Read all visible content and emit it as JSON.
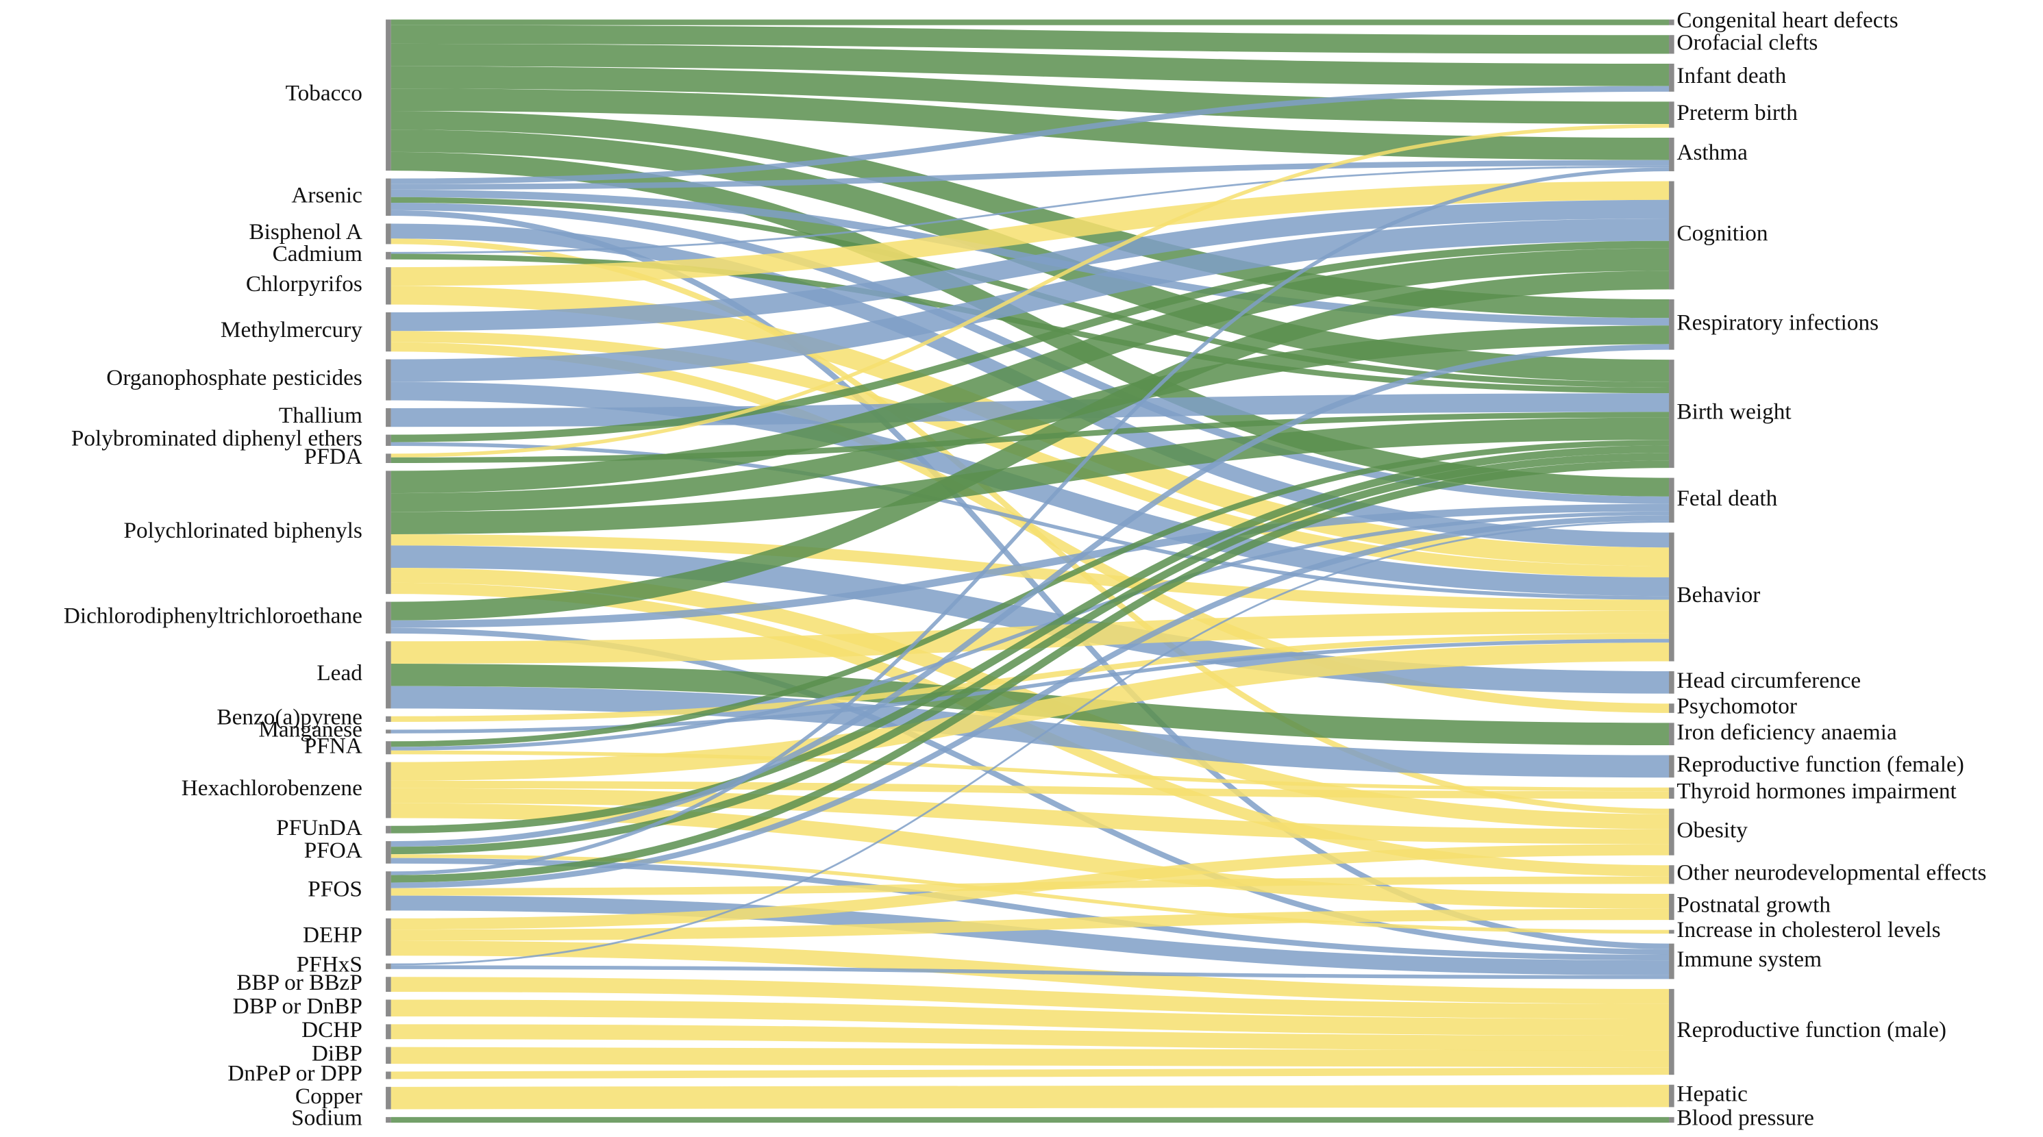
{
  "chart_data": {
    "type": "sankey",
    "sources": [
      "Tobacco",
      "Arsenic",
      "Bisphenol A",
      "Cadmium",
      "Chlorpyrifos",
      "Methylmercury",
      "Organophosphate pesticides",
      "Thallium",
      "Polybrominated diphenyl ethers",
      "PFDA",
      "Polychlorinated biphenyls",
      "Dichlorodiphenyltrichloroethane",
      "Lead",
      "Benzo(a)pyrene",
      "Manganese",
      "PFNA",
      "Hexachlorobenzene",
      "PFUnDA",
      "PFOA",
      "PFOS",
      "DEHP",
      "PFHxS",
      "BBP or BBzP",
      "DBP or DnBP",
      "DCHP",
      "DiBP",
      "DnPeP or DPP",
      "Copper",
      "Sodium"
    ],
    "targets": [
      "Congenital heart defects",
      "Orofacial clefts",
      "Infant death",
      "Preterm birth",
      "Asthma",
      "Cognition",
      "Respiratory infections",
      "Birth weight",
      "Fetal death",
      "Behavior",
      "Head circumference",
      "Psychomotor",
      "Iron deficiency anaemia",
      "Reproductive function (female)",
      "Thyroid hormones impairment",
      "Obesity",
      "Other neurodevelopmental effects",
      "Postnatal growth",
      "Increase in cholesterol levels",
      "Immune system",
      "Reproductive function (male)",
      "Hepatic",
      "Blood pressure"
    ],
    "links": [
      {
        "source": 0,
        "target": 0,
        "value": 3,
        "color": "#5b8f4f"
      },
      {
        "source": 0,
        "target": 1,
        "value": 10,
        "color": "#5b8f4f"
      },
      {
        "source": 0,
        "target": 2,
        "value": 12,
        "color": "#5b8f4f"
      },
      {
        "source": 0,
        "target": 3,
        "value": 12,
        "color": "#5b8f4f"
      },
      {
        "source": 0,
        "target": 4,
        "value": 12,
        "color": "#5b8f4f"
      },
      {
        "source": 0,
        "target": 6,
        "value": 10,
        "color": "#5b8f4f"
      },
      {
        "source": 0,
        "target": 7,
        "value": 12,
        "color": "#5b8f4f"
      },
      {
        "source": 0,
        "target": 8,
        "value": 10,
        "color": "#5b8f4f"
      },
      {
        "source": 1,
        "target": 2,
        "value": 3,
        "color": "#7f9fc7"
      },
      {
        "source": 1,
        "target": 4,
        "value": 3,
        "color": "#7f9fc7"
      },
      {
        "source": 1,
        "target": 6,
        "value": 4,
        "color": "#7f9fc7"
      },
      {
        "source": 1,
        "target": 7,
        "value": 3,
        "color": "#5b8f4f"
      },
      {
        "source": 1,
        "target": 8,
        "value": 4,
        "color": "#7f9fc7"
      },
      {
        "source": 1,
        "target": 19,
        "value": 3,
        "color": "#7f9fc7"
      },
      {
        "source": 2,
        "target": 9,
        "value": 8,
        "color": "#7f9fc7"
      },
      {
        "source": 2,
        "target": 15,
        "value": 3,
        "color": "#f6df6f"
      },
      {
        "source": 3,
        "target": 4,
        "value": 1,
        "color": "#7f9fc7"
      },
      {
        "source": 3,
        "target": 7,
        "value": 3,
        "color": "#5b8f4f"
      },
      {
        "source": 4,
        "target": 5,
        "value": 10,
        "color": "#f6df6f"
      },
      {
        "source": 4,
        "target": 9,
        "value": 10,
        "color": "#f6df6f"
      },
      {
        "source": 5,
        "target": 5,
        "value": 10,
        "color": "#7f9fc7"
      },
      {
        "source": 5,
        "target": 9,
        "value": 6,
        "color": "#f6df6f"
      },
      {
        "source": 5,
        "target": 11,
        "value": 5,
        "color": "#f6df6f"
      },
      {
        "source": 6,
        "target": 5,
        "value": 12,
        "color": "#7f9fc7"
      },
      {
        "source": 6,
        "target": 9,
        "value": 10,
        "color": "#7f9fc7"
      },
      {
        "source": 7,
        "target": 7,
        "value": 10,
        "color": "#7f9fc7"
      },
      {
        "source": 8,
        "target": 5,
        "value": 4,
        "color": "#5b8f4f"
      },
      {
        "source": 8,
        "target": 9,
        "value": 2,
        "color": "#7f9fc7"
      },
      {
        "source": 9,
        "target": 3,
        "value": 2,
        "color": "#f6df6f"
      },
      {
        "source": 9,
        "target": 7,
        "value": 3,
        "color": "#5b8f4f"
      },
      {
        "source": 10,
        "target": 5,
        "value": 12,
        "color": "#5b8f4f"
      },
      {
        "source": 10,
        "target": 6,
        "value": 10,
        "color": "#5b8f4f"
      },
      {
        "source": 10,
        "target": 7,
        "value": 12,
        "color": "#5b8f4f"
      },
      {
        "source": 10,
        "target": 9,
        "value": 6,
        "color": "#f6df6f"
      },
      {
        "source": 10,
        "target": 10,
        "value": 12,
        "color": "#7f9fc7"
      },
      {
        "source": 10,
        "target": 15,
        "value": 8,
        "color": "#f6df6f"
      },
      {
        "source": 10,
        "target": 16,
        "value": 6,
        "color": "#f6df6f"
      },
      {
        "source": 11,
        "target": 5,
        "value": 10,
        "color": "#5b8f4f"
      },
      {
        "source": 11,
        "target": 8,
        "value": 4,
        "color": "#7f9fc7"
      },
      {
        "source": 11,
        "target": 19,
        "value": 3,
        "color": "#7f9fc7"
      },
      {
        "source": 12,
        "target": 9,
        "value": 12,
        "color": "#f6df6f"
      },
      {
        "source": 12,
        "target": 12,
        "value": 12,
        "color": "#5b8f4f"
      },
      {
        "source": 12,
        "target": 13,
        "value": 12,
        "color": "#7f9fc7"
      },
      {
        "source": 13,
        "target": 9,
        "value": 3,
        "color": "#f6df6f"
      },
      {
        "source": 14,
        "target": 9,
        "value": 2,
        "color": "#7f9fc7"
      },
      {
        "source": 15,
        "target": 7,
        "value": 3,
        "color": "#5b8f4f"
      },
      {
        "source": 15,
        "target": 8,
        "value": 2,
        "color": "#7f9fc7"
      },
      {
        "source": 15,
        "target": 14,
        "value": 2,
        "color": "#f6df6f"
      },
      {
        "source": 16,
        "target": 9,
        "value": 10,
        "color": "#f6df6f"
      },
      {
        "source": 16,
        "target": 14,
        "value": 4,
        "color": "#f6df6f"
      },
      {
        "source": 16,
        "target": 15,
        "value": 8,
        "color": "#f6df6f"
      },
      {
        "source": 16,
        "target": 17,
        "value": 8,
        "color": "#f6df6f"
      },
      {
        "source": 17,
        "target": 7,
        "value": 4,
        "color": "#5b8f4f"
      },
      {
        "source": 18,
        "target": 6,
        "value": 3,
        "color": "#7f9fc7"
      },
      {
        "source": 18,
        "target": 7,
        "value": 4,
        "color": "#5b8f4f"
      },
      {
        "source": 18,
        "target": 18,
        "value": 2,
        "color": "#f6df6f"
      },
      {
        "source": 18,
        "target": 19,
        "value": 3,
        "color": "#7f9fc7"
      },
      {
        "source": 19,
        "target": 4,
        "value": 2,
        "color": "#7f9fc7"
      },
      {
        "source": 19,
        "target": 7,
        "value": 4,
        "color": "#5b8f4f"
      },
      {
        "source": 19,
        "target": 8,
        "value": 3,
        "color": "#7f9fc7"
      },
      {
        "source": 19,
        "target": 16,
        "value": 4,
        "color": "#f6df6f"
      },
      {
        "source": 19,
        "target": 19,
        "value": 8,
        "color": "#7f9fc7"
      },
      {
        "source": 20,
        "target": 15,
        "value": 6,
        "color": "#f6df6f"
      },
      {
        "source": 20,
        "target": 17,
        "value": 6,
        "color": "#f6df6f"
      },
      {
        "source": 20,
        "target": 20,
        "value": 8,
        "color": "#f6df6f"
      },
      {
        "source": 21,
        "target": 8,
        "value": 1,
        "color": "#7f9fc7"
      },
      {
        "source": 21,
        "target": 19,
        "value": 2,
        "color": "#7f9fc7"
      },
      {
        "source": 22,
        "target": 20,
        "value": 8,
        "color": "#f6df6f"
      },
      {
        "source": 23,
        "target": 20,
        "value": 9,
        "color": "#f6df6f"
      },
      {
        "source": 24,
        "target": 20,
        "value": 8,
        "color": "#f6df6f"
      },
      {
        "source": 25,
        "target": 20,
        "value": 9,
        "color": "#f6df6f"
      },
      {
        "source": 26,
        "target": 20,
        "value": 4,
        "color": "#f6df6f"
      },
      {
        "source": 27,
        "target": 21,
        "value": 12,
        "color": "#f6df6f"
      },
      {
        "source": 28,
        "target": 22,
        "value": 3,
        "color": "#5b8f4f"
      }
    ]
  }
}
